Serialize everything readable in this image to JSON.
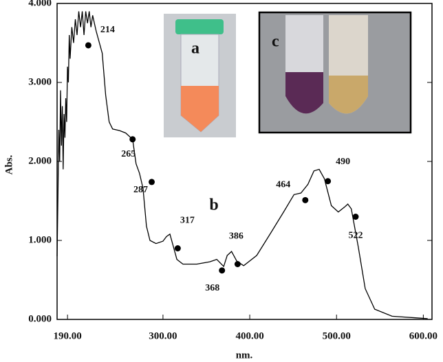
{
  "chart_data": {
    "type": "line",
    "x_label": "nm.",
    "y_label": "Abs.",
    "annotations": [
      "a",
      "b",
      "c"
    ],
    "xlim": [
      178,
      610
    ],
    "xticks": [
      {
        "value": 190,
        "label": "190.00"
      },
      {
        "value": 300,
        "label": "300.00"
      },
      {
        "value": 400,
        "label": "400.00"
      },
      {
        "value": 500,
        "label": "500.00"
      },
      {
        "value": 600,
        "label": "600.00"
      }
    ],
    "ylim": [
      0,
      4
    ],
    "yticks": [
      {
        "value": 0,
        "label": "0.000"
      },
      {
        "value": 1,
        "label": "1.000"
      },
      {
        "value": 2,
        "label": "2.000"
      },
      {
        "value": 3,
        "label": "3.000"
      },
      {
        "value": 4,
        "label": "4.000"
      }
    ],
    "series": [
      {
        "type": "line",
        "color": "#000000",
        "x": [
          178,
          179,
          180,
          181,
          182,
          183,
          184,
          185,
          186,
          187,
          188,
          189,
          190,
          191,
          192,
          193,
          195,
          197,
          199,
          201,
          203,
          205,
          207,
          209,
          211,
          213,
          215,
          217,
          219,
          221,
          223,
          230,
          234,
          238,
          242,
          250,
          257,
          265,
          269,
          273,
          277,
          281,
          285,
          292,
          300,
          304,
          308,
          312,
          316,
          323,
          339,
          354,
          362,
          370,
          374,
          379,
          385,
          393,
          408,
          424,
          439,
          451,
          459,
          467,
          474,
          480,
          486,
          494,
          502,
          510,
          513,
          517,
          525,
          533,
          544,
          564,
          591,
          605
        ],
        "values": [
          0.8,
          1.6,
          2.4,
          2.0,
          2.9,
          2.2,
          2.7,
          1.9,
          2.6,
          2.3,
          2.8,
          2.5,
          3.2,
          3.0,
          3.6,
          3.3,
          3.7,
          3.5,
          3.8,
          3.6,
          3.9,
          3.7,
          3.9,
          3.6,
          3.9,
          3.75,
          3.9,
          3.7,
          3.85,
          3.75,
          3.65,
          3.37,
          2.84,
          2.5,
          2.41,
          2.39,
          2.36,
          2.28,
          1.97,
          1.85,
          1.66,
          1.18,
          1.0,
          0.96,
          0.99,
          1.05,
          1.08,
          0.92,
          0.76,
          0.7,
          0.7,
          0.73,
          0.76,
          0.67,
          0.81,
          0.86,
          0.74,
          0.68,
          0.81,
          1.09,
          1.36,
          1.58,
          1.6,
          1.71,
          1.88,
          1.9,
          1.78,
          1.44,
          1.36,
          1.43,
          1.46,
          1.4,
          0.92,
          0.39,
          0.13,
          0.04,
          0.02,
          0.01
        ]
      },
      {
        "type": "scatter",
        "color": "#000000",
        "x": [
          214,
          265,
          287,
          317,
          368,
          386,
          464,
          490,
          522
        ],
        "values": [
          3.47,
          2.28,
          1.74,
          0.9,
          0.62,
          0.7,
          1.51,
          1.75,
          1.3
        ]
      }
    ]
  }
}
